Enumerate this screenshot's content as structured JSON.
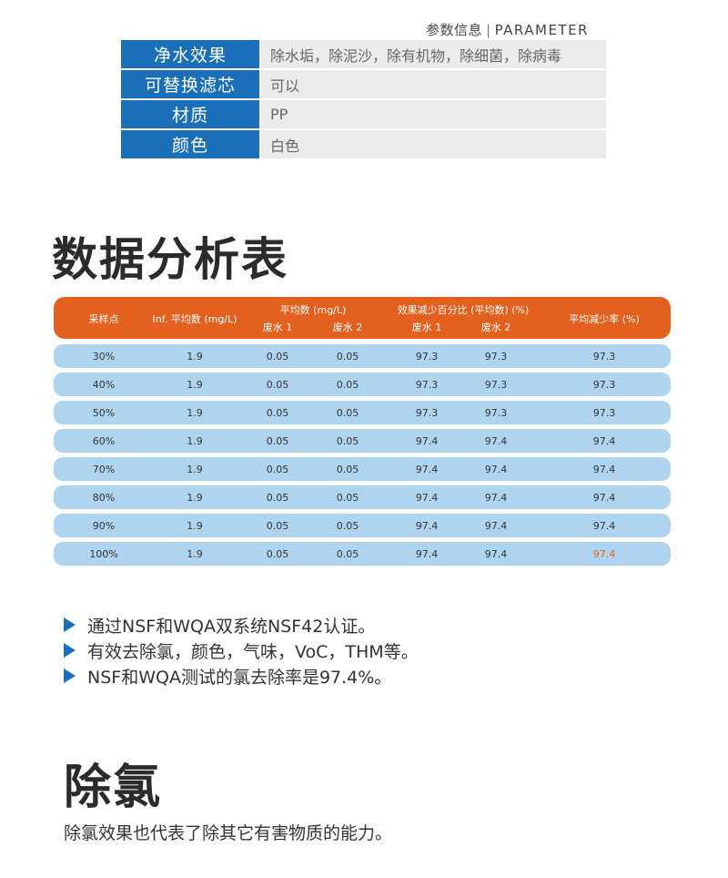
{
  "parameter": {
    "header_cn": "参数信息",
    "header_sep": "|",
    "header_en": "PARAMETER",
    "rows": [
      {
        "key": "净水效果",
        "value": "除水垢，除泥沙，除有机物，除细菌，除病毒"
      },
      {
        "key": "可替换滤芯",
        "value": "可以"
      },
      {
        "key": "材质",
        "value": "PP"
      },
      {
        "key": "颜色",
        "value": "白色"
      }
    ]
  },
  "analysis": {
    "title": "数据分析表",
    "headers": {
      "sample": "采样点",
      "inf": "Inf. 平均数 (mg/L)",
      "avg_group": "平均数 (mg/L)",
      "avg_w1": "废水 1",
      "avg_w2": "废水 2",
      "eff_group": "效果减少百分比 (平均数) (%)",
      "eff_w1": "废水 1",
      "eff_w2": "废水 2",
      "avg_reduction": "平均减少率 (%)"
    },
    "rows": [
      [
        "30%",
        "1.9",
        "0.05",
        "0.05",
        "97.3",
        "97.3",
        "97.3"
      ],
      [
        "40%",
        "1.9",
        "0.05",
        "0.05",
        "97.3",
        "97.3",
        "97.3"
      ],
      [
        "50%",
        "1.9",
        "0.05",
        "0.05",
        "97.3",
        "97.3",
        "97.3"
      ],
      [
        "60%",
        "1.9",
        "0.05",
        "0.05",
        "97.4",
        "97.4",
        "97.4"
      ],
      [
        "70%",
        "1.9",
        "0.05",
        "0.05",
        "97.4",
        "97.4",
        "97.4"
      ],
      [
        "80%",
        "1.9",
        "0.05",
        "0.05",
        "97.4",
        "97.4",
        "97.4"
      ],
      [
        "90%",
        "1.9",
        "0.05",
        "0.05",
        "97.4",
        "97.4",
        "97.4"
      ],
      [
        "100%",
        "1.9",
        "0.05",
        "0.05",
        "97.4",
        "97.4",
        "97.4"
      ]
    ]
  },
  "bullets": [
    "通过NSF和WQA双系统NSF42认证。",
    "有效去除氯，颜色，气味，VoC，THM等。",
    "NSF和WQA测试的氯去除率是97.4%。"
  ],
  "dechlorination": {
    "title": "除氯",
    "description": "除氯效果也代表了除其它有害物质的能力。"
  },
  "colors": {
    "accent_blue": "#1a6fb8",
    "header_orange": "#e4601f",
    "row_blue": "#afd4f0",
    "highlight": "#e4601f"
  }
}
